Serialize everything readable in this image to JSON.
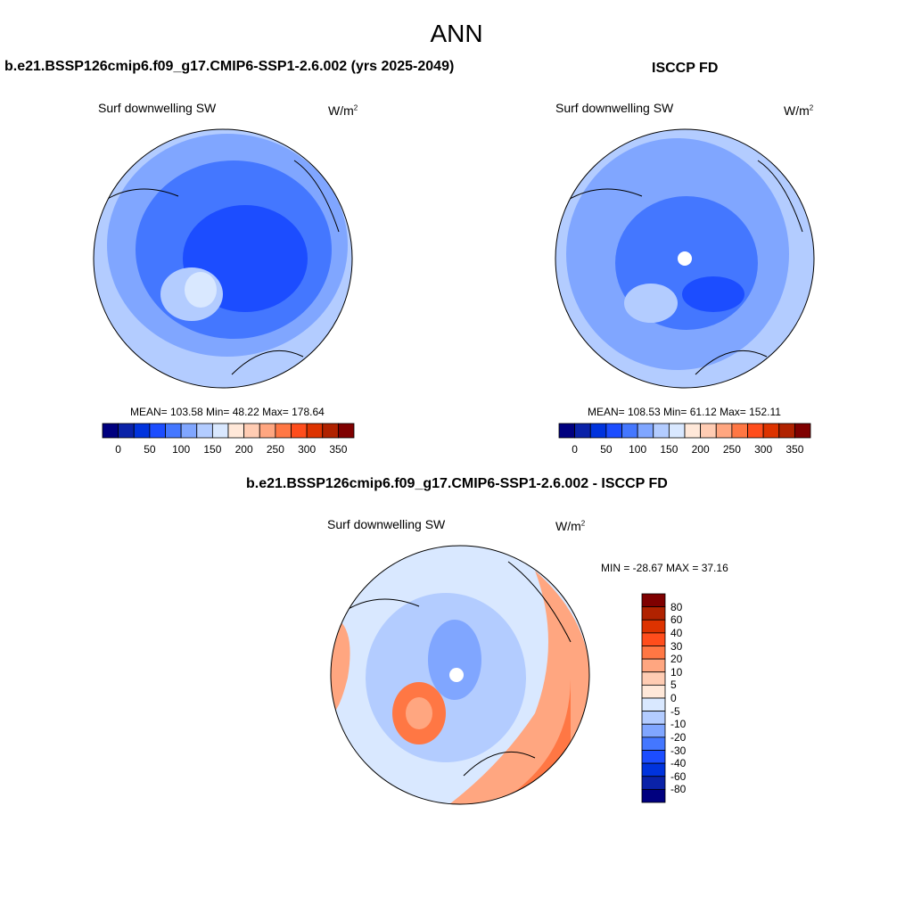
{
  "figure_title": "ANN",
  "panels": [
    {
      "title": "b.e21.BSSP126cmip6.f09_g17.CMIP6-SSP1-2.6.002 (yrs 2025-2049)",
      "subtitle": "Surf downwelling SW",
      "units": "W/m",
      "units_sup": "2",
      "stats": "MEAN= 103.58  Min=  48.22  Max= 178.64"
    },
    {
      "title": "ISCCP FD",
      "subtitle": "Surf downwelling SW",
      "units": "W/m",
      "units_sup": "2",
      "stats": "MEAN= 108.53  Min=  61.12  Max= 152.11"
    },
    {
      "title": "b.e21.BSSP126cmip6.f09_g17.CMIP6-SSP1-2.6.002 - ISCCP FD",
      "subtitle": "Surf downwelling SW",
      "units": "W/m",
      "units_sup": "2",
      "stats": "MIN = -28.67 MAX =  37.16"
    }
  ],
  "chart_data": {
    "type": "heatmap",
    "projection": "north polar stereographic",
    "colors": [
      "#00007f",
      "#0a22a8",
      "#0033dd",
      "#1c4dff",
      "#4477ff",
      "#80a6ff",
      "#b3ccff",
      "#d9e8ff",
      "#ffe8d9",
      "#ffccb3",
      "#ffa680",
      "#ff7744",
      "#ff4d1c",
      "#dd3300",
      "#b02200",
      "#7f0000"
    ],
    "abs_colorbar": {
      "boundaries": [
        0,
        25,
        50,
        75,
        100,
        125,
        150,
        175,
        200,
        225,
        250,
        275,
        300,
        325,
        350
      ],
      "labels": [
        "0",
        "50",
        "100",
        "150",
        "200",
        "250",
        "300",
        "350"
      ]
    },
    "diff_colorbar": {
      "labels": [
        "80",
        "60",
        "40",
        "30",
        "20",
        "10",
        "5",
        "0",
        "-5",
        "-10",
        "-20",
        "-30",
        "-40",
        "-60",
        "-80"
      ]
    },
    "panels": [
      {
        "mean": 103.58,
        "min": 48.22,
        "max": 178.64
      },
      {
        "mean": 108.53,
        "min": 61.12,
        "max": 152.11
      },
      {
        "min": -28.67,
        "max": 37.16
      }
    ]
  }
}
